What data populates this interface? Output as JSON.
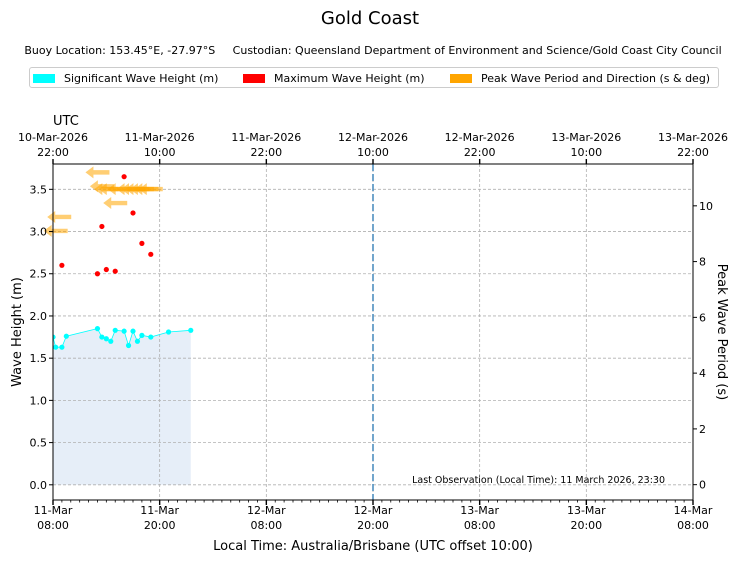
{
  "chart_data": {
    "type": "scatter",
    "title": "Gold Coast",
    "subtitle": "Buoy Location: 153.45°E, -27.97°S     Custodian: Queensland Department of Environment and Science/Gold Coast City Council",
    "xlabel": "Local Time: Australia/Brisbane (UTC offset 10:00)",
    "ylabel": "Wave Height (m)",
    "y2label": "Peak Wave Period (s)",
    "top_axis_label": "UTC",
    "xlim_hours": [
      0,
      72
    ],
    "ylim": [
      -0.18,
      3.8
    ],
    "y2lim": [
      -0.55,
      11.5
    ],
    "grid": true,
    "legend_placement": "top",
    "local_ticks": [
      {
        "h": 0,
        "l1": "11-Mar",
        "l2": "08:00"
      },
      {
        "h": 12,
        "l1": "11-Mar",
        "l2": "20:00"
      },
      {
        "h": 24,
        "l1": "12-Mar",
        "l2": "08:00"
      },
      {
        "h": 36,
        "l1": "12-Mar",
        "l2": "20:00"
      },
      {
        "h": 48,
        "l1": "13-Mar",
        "l2": "08:00"
      },
      {
        "h": 60,
        "l1": "13-Mar",
        "l2": "20:00"
      },
      {
        "h": 72,
        "l1": "14-Mar",
        "l2": "08:00"
      }
    ],
    "utc_ticks": [
      {
        "h": 0,
        "l1": "10-Mar-2026",
        "l2": "22:00"
      },
      {
        "h": 12,
        "l1": "11-Mar-2026",
        "l2": "10:00"
      },
      {
        "h": 24,
        "l1": "11-Mar-2026",
        "l2": "22:00"
      },
      {
        "h": 36,
        "l1": "12-Mar-2026",
        "l2": "10:00"
      },
      {
        "h": 48,
        "l1": "12-Mar-2026",
        "l2": "22:00"
      },
      {
        "h": 60,
        "l1": "13-Mar-2026",
        "l2": "10:00"
      },
      {
        "h": 72,
        "l1": "13-Mar-2026",
        "l2": "22:00"
      }
    ],
    "y_ticks": [
      0.0,
      0.5,
      1.0,
      1.5,
      2.0,
      2.5,
      3.0,
      3.5
    ],
    "y_tick_labels": [
      "0.0",
      "0.5",
      "1.0",
      "1.5",
      "2.0",
      "2.5",
      "3.0",
      "3.5"
    ],
    "y2_ticks": [
      0,
      2,
      4,
      6,
      8,
      10
    ],
    "y2_tick_labels": [
      "0",
      "2",
      "4",
      "6",
      "8",
      "10"
    ],
    "now_marker_hours": 36,
    "last_observation": "Last Observation (Local Time): 11 March 2026, 23:30",
    "series": [
      {
        "name": "Significant Wave Height (m)",
        "color": "#00ffff",
        "fill_color": "#e6eef8",
        "points": [
          [
            0.0,
            1.75
          ],
          [
            0.3,
            1.63
          ],
          [
            1.0,
            1.63
          ],
          [
            1.5,
            1.76
          ],
          [
            5.0,
            1.85
          ],
          [
            5.5,
            1.75
          ],
          [
            6.0,
            1.73
          ],
          [
            6.5,
            1.7
          ],
          [
            7.0,
            1.83
          ],
          [
            8.0,
            1.82
          ],
          [
            8.5,
            1.65
          ],
          [
            9.0,
            1.82
          ],
          [
            9.5,
            1.7
          ],
          [
            10.0,
            1.77
          ],
          [
            11.0,
            1.75
          ],
          [
            13.0,
            1.81
          ],
          [
            15.5,
            1.83
          ]
        ]
      },
      {
        "name": "Maximum Wave Height (m)",
        "color": "#ff0000",
        "points": [
          [
            1.0,
            2.6
          ],
          [
            5.0,
            2.5
          ],
          [
            5.5,
            3.06
          ],
          [
            6.0,
            2.55
          ],
          [
            7.0,
            2.53
          ],
          [
            8.0,
            3.65
          ],
          [
            9.0,
            3.22
          ],
          [
            10.0,
            2.86
          ],
          [
            11.0,
            2.73
          ]
        ]
      },
      {
        "name": "Peak Wave Period and Direction (s & deg)",
        "color": "#ffa500",
        "points": [
          [
            0.3,
            9.1
          ],
          [
            0.7,
            9.6
          ],
          [
            5.0,
            11.2
          ],
          [
            5.5,
            10.7
          ],
          [
            6.0,
            10.6
          ],
          [
            6.5,
            10.6
          ],
          [
            7.0,
            10.1
          ],
          [
            7.5,
            10.6
          ],
          [
            8.5,
            10.6
          ],
          [
            9.0,
            10.6
          ],
          [
            9.5,
            10.6
          ],
          [
            10.0,
            10.6
          ],
          [
            10.5,
            10.6
          ],
          [
            11.0,
            10.6
          ]
        ]
      }
    ]
  }
}
